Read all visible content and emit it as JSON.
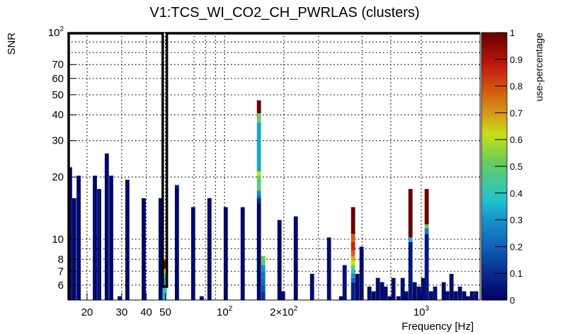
{
  "chart_data": {
    "type": "heatmap",
    "title": "V1:TCS_WI_CO2_CH_PWRLAS (clusters)",
    "xlabel": "Frequency [Hz]",
    "ylabel": "SNR",
    "zlabel": "use-percentage",
    "xscale": "log",
    "yscale": "log",
    "xlim": [
      16,
      1990
    ],
    "ylim": [
      5.08,
      100
    ],
    "zlim": [
      0,
      1
    ],
    "bin_ratio": 1.0494,
    "grid": true,
    "x_ticks": [
      {
        "value": 20,
        "label": "20"
      },
      {
        "value": 30,
        "label": "30"
      },
      {
        "value": 40,
        "label": "40"
      },
      {
        "value": 50,
        "label": "50"
      },
      {
        "value": 100,
        "label": "10",
        "sup": "2"
      },
      {
        "value": 200,
        "label": "2×10",
        "sup": "2"
      },
      {
        "value": 1000,
        "label": "10",
        "sup": "3"
      }
    ],
    "x_grid": [
      20,
      30,
      40,
      50,
      70,
      80,
      90,
      100,
      200,
      300,
      500,
      700,
      1000
    ],
    "y_ticks": [
      {
        "value": 6,
        "label": "6"
      },
      {
        "value": 7,
        "label": "7"
      },
      {
        "value": 8,
        "label": "8"
      },
      {
        "value": 10,
        "label": "10"
      },
      {
        "value": 20,
        "label": "20"
      },
      {
        "value": 30,
        "label": "30"
      },
      {
        "value": 40,
        "label": "40"
      },
      {
        "value": 50,
        "label": "50"
      },
      {
        "value": 60,
        "label": "60"
      },
      {
        "value": 70,
        "label": "70"
      },
      {
        "value": 100,
        "label": "10",
        "sup": "2"
      }
    ],
    "y_grid": [
      6,
      7,
      8,
      9,
      10,
      20,
      30,
      40,
      50,
      60,
      70,
      80,
      90
    ],
    "z_ticks": [
      "0",
      "0.1",
      "0.2",
      "0.3",
      "0.4",
      "0.5",
      "0.6",
      "0.7",
      "0.8",
      "0.9",
      "1"
    ],
    "palette": [
      [
        0.0,
        "#000060"
      ],
      [
        0.1,
        "#0a2a90"
      ],
      [
        0.2,
        "#1060b8"
      ],
      [
        0.3,
        "#1890c8"
      ],
      [
        0.37,
        "#20c0d0"
      ],
      [
        0.45,
        "#48c898"
      ],
      [
        0.52,
        "#68cc58"
      ],
      [
        0.62,
        "#c8e018"
      ],
      [
        0.7,
        "#d89818"
      ],
      [
        0.8,
        "#d05010"
      ],
      [
        0.88,
        "#c01810"
      ],
      [
        1.0,
        "#680000"
      ]
    ],
    "highlight_box_color": "#000000",
    "bars": [
      {
        "f": 16.0,
        "segments": [
          [
            22.3,
            0.02
          ]
        ]
      },
      {
        "f": 16.8,
        "segments": [
          [
            15.8,
            0.02
          ]
        ]
      },
      {
        "f": 17.7,
        "segments": [
          [
            20.3,
            0.02
          ]
        ]
      },
      {
        "f": 21.4,
        "segments": [
          [
            20.3,
            0.02
          ]
        ]
      },
      {
        "f": 22.5,
        "segments": [
          [
            17.5,
            0.04
          ]
        ]
      },
      {
        "f": 24.6,
        "segments": [
          [
            26.0,
            0.02
          ]
        ]
      },
      {
        "f": 25.9,
        "segments": [
          [
            20.3,
            0.02
          ]
        ]
      },
      {
        "f": 28.6,
        "segments": [
          [
            5.3,
            0.05
          ]
        ]
      },
      {
        "f": 31.3,
        "segments": [
          [
            19.4,
            0.02
          ]
        ]
      },
      {
        "f": 37.9,
        "segments": [
          [
            15.8,
            0.02
          ]
        ]
      },
      {
        "f": 46.2,
        "segments": [
          [
            15.8,
            0.02
          ]
        ]
      },
      {
        "f": 48.5,
        "segments": [
          [
            5.9,
            0.4
          ],
          [
            6.5,
            0.35
          ],
          [
            6.8,
            0.47
          ],
          [
            7.2,
            0.6
          ],
          [
            7.9,
            1.0
          ]
        ]
      },
      {
        "f": 55.9,
        "segments": [
          [
            17.8,
            0.02
          ],
          [
            18.3,
            0.08
          ]
        ]
      },
      {
        "f": 67.6,
        "segments": [
          [
            14.3,
            0.02
          ]
        ]
      },
      {
        "f": 74.7,
        "segments": [
          [
            5.3,
            0.05
          ]
        ]
      },
      {
        "f": 81.8,
        "segments": [
          [
            15.8,
            0.02
          ]
        ]
      },
      {
        "f": 99.0,
        "segments": [
          [
            14.3,
            0.02
          ]
        ]
      },
      {
        "f": 120.7,
        "segments": [
          [
            14.3,
            0.02
          ]
        ]
      },
      {
        "f": 146.0,
        "segments": [
          [
            14.9,
            0.02
          ],
          [
            15.8,
            0.1
          ],
          [
            16.4,
            0.22
          ],
          [
            17.2,
            0.3
          ],
          [
            18.2,
            0.52
          ],
          [
            19.4,
            0.45
          ],
          [
            20.3,
            0.52
          ],
          [
            21.3,
            0.62
          ],
          [
            36.8,
            0.33
          ],
          [
            40.7,
            0.52
          ],
          [
            47.0,
            1.0
          ]
        ]
      },
      {
        "f": 153.5,
        "segments": [
          [
            5.6,
            0.12
          ],
          [
            6.0,
            0.18
          ],
          [
            6.5,
            0.22
          ],
          [
            7.0,
            0.25
          ],
          [
            7.5,
            0.3
          ],
          [
            8.3,
            0.52
          ]
        ]
      },
      {
        "f": 185.7,
        "segments": [
          [
            12.4,
            0.02
          ]
        ]
      },
      {
        "f": 193.6,
        "segments": [
          [
            5.6,
            0.04
          ]
        ]
      },
      {
        "f": 224.7,
        "segments": [
          [
            12.9,
            0.02
          ]
        ]
      },
      {
        "f": 271.9,
        "segments": [
          [
            6.8,
            0.03
          ]
        ]
      },
      {
        "f": 331.6,
        "segments": [
          [
            10.2,
            0.03
          ]
        ]
      },
      {
        "f": 381.8,
        "segments": [
          [
            5.3,
            0.04
          ]
        ]
      },
      {
        "f": 398.0,
        "segments": [
          [
            7.5,
            0.04
          ]
        ]
      },
      {
        "f": 439.5,
        "segments": [
          [
            6.2,
            0.08
          ],
          [
            6.5,
            0.22
          ],
          [
            6.8,
            0.3
          ],
          [
            7.2,
            0.38
          ],
          [
            7.5,
            0.52
          ],
          [
            7.9,
            0.62
          ],
          [
            8.3,
            0.68
          ],
          [
            8.8,
            0.78
          ],
          [
            9.7,
            0.86
          ],
          [
            10.6,
            0.78
          ],
          [
            14.3,
            1.0
          ]
        ]
      },
      {
        "f": 461.8,
        "segments": [
          [
            6.8,
            0.03
          ]
        ]
      },
      {
        "f": 485.4,
        "segments": [
          [
            9.2,
            0.03
          ]
        ]
      },
      {
        "f": 531.7,
        "segments": [
          [
            5.9,
            0.03
          ]
        ]
      },
      {
        "f": 558.9,
        "segments": [
          [
            5.6,
            0.03
          ]
        ]
      },
      {
        "f": 587.3,
        "segments": [
          [
            6.5,
            0.03
          ]
        ]
      },
      {
        "f": 617.0,
        "segments": [
          [
            6.2,
            0.03
          ]
        ]
      },
      {
        "f": 643.0,
        "segments": [
          [
            5.9,
            0.03
          ]
        ]
      },
      {
        "f": 676.0,
        "segments": [
          [
            5.3,
            0.03
          ]
        ]
      },
      {
        "f": 704.7,
        "segments": [
          [
            6.5,
            0.03
          ]
        ]
      },
      {
        "f": 746.8,
        "segments": [
          [
            5.3,
            0.03
          ]
        ]
      },
      {
        "f": 784.8,
        "segments": [
          [
            6.5,
            0.03
          ]
        ]
      },
      {
        "f": 818.0,
        "segments": [
          [
            5.6,
            0.03
          ]
        ]
      },
      {
        "f": 860.0,
        "segments": [
          [
            9.7,
            0.05
          ],
          [
            10.2,
            0.33
          ],
          [
            17.5,
            1.0
          ]
        ]
      },
      {
        "f": 903.6,
        "segments": [
          [
            6.2,
            0.03
          ]
        ]
      },
      {
        "f": 949.5,
        "segments": [
          [
            5.9,
            0.03
          ]
        ]
      },
      {
        "f": 998.0,
        "segments": [
          [
            6.5,
            0.03
          ]
        ]
      },
      {
        "f": 1040.0,
        "segments": [
          [
            10.6,
            0.05
          ],
          [
            11.3,
            0.25
          ],
          [
            11.8,
            0.52
          ],
          [
            17.5,
            1.0
          ]
        ]
      },
      {
        "f": 1093.0,
        "segments": [
          [
            5.6,
            0.03
          ]
        ]
      },
      {
        "f": 1148.0,
        "segments": [
          [
            5.9,
            0.03
          ]
        ]
      },
      {
        "f": 1269.0,
        "segments": [
          [
            6.2,
            0.03
          ]
        ]
      },
      {
        "f": 1322.0,
        "segments": [
          [
            5.6,
            0.03
          ]
        ]
      },
      {
        "f": 1390.0,
        "segments": [
          [
            6.8,
            0.03
          ]
        ]
      },
      {
        "f": 1460.0,
        "segments": [
          [
            5.6,
            0.03
          ]
        ]
      },
      {
        "f": 1535.0,
        "segments": [
          [
            5.9,
            0.03
          ]
        ]
      },
      {
        "f": 1614.0,
        "segments": [
          [
            5.6,
            0.03
          ]
        ]
      },
      {
        "f": 1682.0,
        "segments": [
          [
            5.3,
            0.03
          ]
        ]
      },
      {
        "f": 1767.0,
        "segments": [
          [
            5.6,
            0.03
          ]
        ]
      },
      {
        "f": 1857.0,
        "segments": [
          [
            5.6,
            0.03
          ]
        ]
      }
    ],
    "highlight_band_hz": [
      48.5,
      50.9
    ]
  }
}
